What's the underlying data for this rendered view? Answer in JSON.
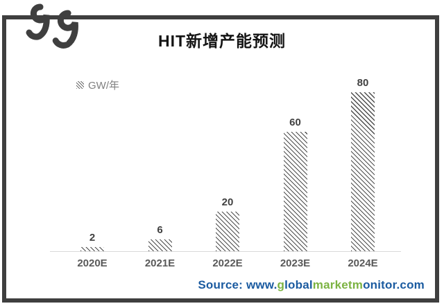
{
  "title": "HIT新增产能预测",
  "legend": {
    "label": "GW/年",
    "swatch": "diagonal-hatch-square"
  },
  "logo": {
    "name": "double-hook-ee-logo",
    "color": "#3f3f3f"
  },
  "chart_data": {
    "type": "bar",
    "title": "HIT新增产能预测",
    "categories": [
      "2020E",
      "2021E",
      "2022E",
      "2023E",
      "2024E"
    ],
    "values": [
      2,
      6,
      20,
      60,
      80
    ],
    "unit": "GW/年",
    "xlabel": "",
    "ylabel": "GW/年",
    "ylim": [
      0,
      84
    ],
    "grid": false,
    "data_labels": true,
    "legend_position": "top-left",
    "bar_style": "white fill with dark diagonal hatch (\\ direction)"
  },
  "source": {
    "segments": [
      {
        "text": "Source: www.",
        "color": "#1b5ba0"
      },
      {
        "text": "g",
        "color": "#7cb342"
      },
      {
        "text": "lobal",
        "color": "#1b5ba0"
      },
      {
        "text": "market",
        "color": "#7cb342"
      },
      {
        "text": "m",
        "color": "#7cb342"
      },
      {
        "text": "onitor.com",
        "color": "#1b5ba0"
      }
    ]
  },
  "colors": {
    "frame": "#3f3f3f",
    "hatch": "#4d4d4d",
    "axis_line": "#d9d9d9",
    "category_label": "#595959",
    "value_label": "#404040",
    "legend_text": "#7f7f7f",
    "title_text": "#141414",
    "source_blue": "#1b5ba0",
    "source_green": "#7cb342"
  }
}
